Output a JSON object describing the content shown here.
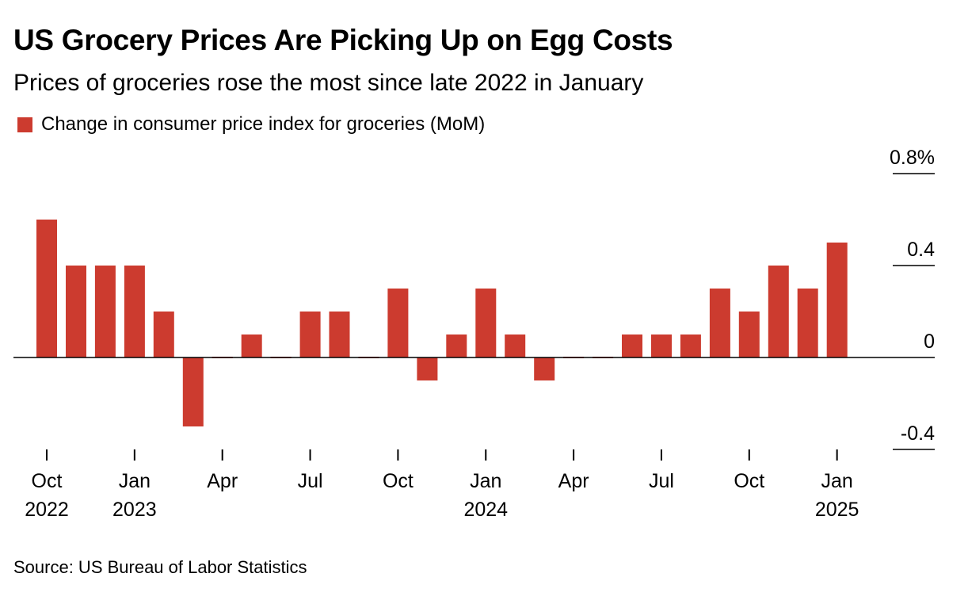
{
  "chart_data": {
    "type": "bar",
    "title": "US Grocery Prices Are Picking Up on Egg Costs",
    "subtitle": "Prices of groceries rose the most since late 2022 in January",
    "legend": [
      {
        "name": "Change in consumer price index for groceries (MoM)",
        "color": "#cc3b2f"
      }
    ],
    "source": "Source: US Bureau of Labor Statistics",
    "categories": [
      "2022-10",
      "2022-11",
      "2022-12",
      "2023-01",
      "2023-02",
      "2023-03",
      "2023-04",
      "2023-05",
      "2023-06",
      "2023-07",
      "2023-08",
      "2023-09",
      "2023-10",
      "2023-11",
      "2023-12",
      "2024-01",
      "2024-02",
      "2024-03",
      "2024-04",
      "2024-05",
      "2024-06",
      "2024-07",
      "2024-08",
      "2024-09",
      "2024-10",
      "2024-11",
      "2024-12",
      "2025-01"
    ],
    "values": [
      0.6,
      0.4,
      0.4,
      0.4,
      0.2,
      -0.3,
      0.0,
      0.1,
      0.0,
      0.2,
      0.2,
      0.0,
      0.3,
      -0.1,
      0.1,
      0.3,
      0.1,
      -0.1,
      0.0,
      0.0,
      0.1,
      0.1,
      0.1,
      0.3,
      0.2,
      0.4,
      0.3,
      0.5
    ],
    "ylim": [
      -0.4,
      0.8
    ],
    "y_ticks": [
      {
        "value": 0.8,
        "label": "0.8%"
      },
      {
        "value": 0.4,
        "label": "0.4"
      },
      {
        "value": 0,
        "label": "0"
      },
      {
        "value": -0.4,
        "label": "-0.4"
      }
    ],
    "x_ticks": [
      {
        "index": 0,
        "month": "Oct",
        "year": "2022"
      },
      {
        "index": 3,
        "month": "Jan",
        "year": "2023"
      },
      {
        "index": 6,
        "month": "Apr",
        "year": ""
      },
      {
        "index": 9,
        "month": "Jul",
        "year": ""
      },
      {
        "index": 12,
        "month": "Oct",
        "year": ""
      },
      {
        "index": 15,
        "month": "Jan",
        "year": "2024"
      },
      {
        "index": 18,
        "month": "Apr",
        "year": ""
      },
      {
        "index": 21,
        "month": "Jul",
        "year": ""
      },
      {
        "index": 24,
        "month": "Oct",
        "year": ""
      },
      {
        "index": 27,
        "month": "Jan",
        "year": "2025"
      }
    ],
    "bar_color": "#cc3b2f",
    "grid": false,
    "legend_position": "top-left"
  }
}
